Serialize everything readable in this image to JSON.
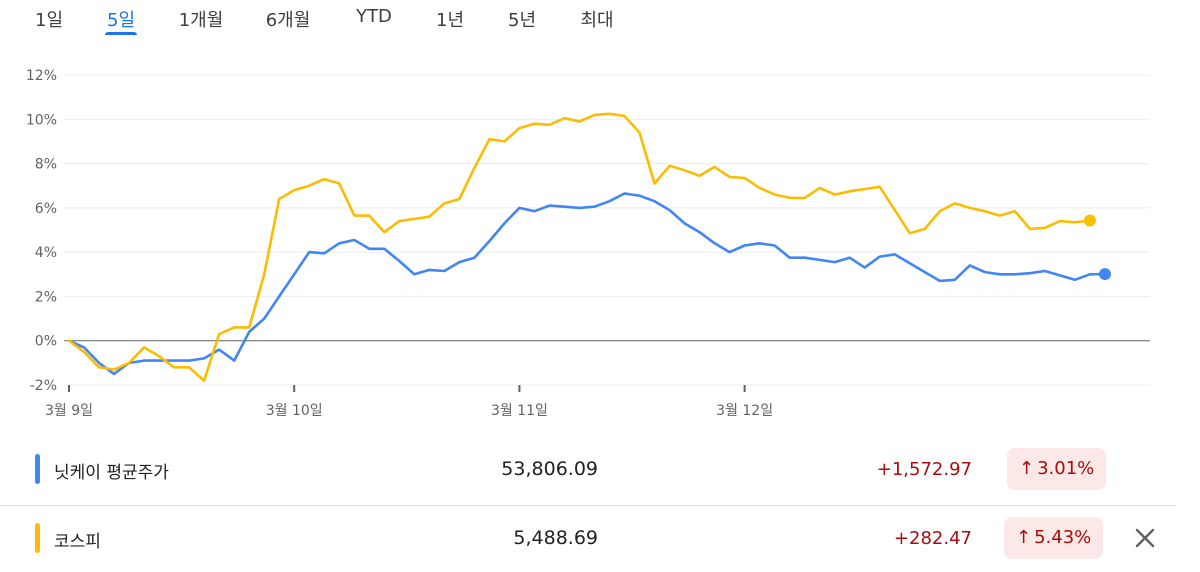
{
  "tabs": [
    {
      "label": "1일",
      "active": false
    },
    {
      "label": "5일",
      "active": true
    },
    {
      "label": "1개월",
      "active": false
    },
    {
      "label": "6개월",
      "active": false
    },
    {
      "label": "YTD",
      "active": false
    },
    {
      "label": "1년",
      "active": false
    },
    {
      "label": "5년",
      "active": false
    },
    {
      "label": "최대",
      "active": false
    }
  ],
  "colors": {
    "nikkei": "#4285f4",
    "kospi": "#fbbc04",
    "accent": "#1a73e8",
    "negative_text": "#a50e0e",
    "badge_bg": "#fce8e6"
  },
  "legend": [
    {
      "name": "닛케이 평균주가",
      "price": "53,806.09",
      "change": "+1,572.97",
      "percent": "3.01%",
      "color": "#4285f4",
      "arrow_icon": "arrow-up-icon"
    },
    {
      "name": "코스피",
      "price": "5,488.69",
      "change": "+282.47",
      "percent": "5.43%",
      "color": "#fbbc04",
      "arrow_icon": "arrow-up-icon"
    }
  ],
  "close_icon": "close-icon",
  "chart_data": {
    "type": "line",
    "title": "",
    "xlabel": "",
    "ylabel": "",
    "ylim": [
      -2,
      12
    ],
    "yticks": [
      "-2%",
      "0%",
      "2%",
      "4%",
      "6%",
      "8%",
      "10%",
      "12%"
    ],
    "yvalues": [
      -2,
      0,
      2,
      4,
      6,
      8,
      10,
      12
    ],
    "xlabels": [
      "3월 9일",
      "3월 10일",
      "3월 11일",
      "3월 12일"
    ],
    "xlabel_positions": [
      0,
      15,
      30,
      45
    ],
    "x_max": 72,
    "grid": true,
    "series": [
      {
        "name": "닛케이 평균주가",
        "color": "#4285f4",
        "values": [
          0.0,
          -0.3,
          -1.0,
          -1.5,
          -1.0,
          -0.9,
          -0.9,
          -0.9,
          -0.9,
          -0.8,
          -0.4,
          -0.9,
          0.4,
          1.0,
          2.0,
          3.0,
          4.0,
          3.95,
          4.4,
          4.55,
          4.15,
          4.15,
          3.6,
          3.0,
          3.2,
          3.15,
          3.55,
          3.75,
          4.5,
          5.3,
          6.0,
          5.85,
          6.1,
          6.05,
          6.0,
          6.05,
          6.3,
          6.65,
          6.55,
          6.3,
          5.9,
          5.3,
          4.9,
          4.4,
          4.0,
          4.3,
          4.4,
          4.3,
          3.75,
          3.75,
          3.65,
          3.55,
          3.75,
          3.3,
          3.8,
          3.9,
          3.5,
          3.1,
          2.7,
          2.75,
          3.4,
          3.1,
          3.0,
          3.0,
          3.05,
          3.15,
          2.95,
          2.75,
          3.0,
          3.01
        ]
      },
      {
        "name": "코스피",
        "color": "#fbbc04",
        "values": [
          0.0,
          -0.5,
          -1.2,
          -1.3,
          -1.0,
          -0.3,
          -0.7,
          -1.2,
          -1.2,
          -1.8,
          0.3,
          0.6,
          0.6,
          3.0,
          6.4,
          6.8,
          7.0,
          7.3,
          7.1,
          5.65,
          5.65,
          4.9,
          5.4,
          5.5,
          5.6,
          6.2,
          6.4,
          7.8,
          9.1,
          9.0,
          9.6,
          9.8,
          9.75,
          10.05,
          9.9,
          10.2,
          10.25,
          10.15,
          9.4,
          7.1,
          7.9,
          7.7,
          7.45,
          7.85,
          7.4,
          7.35,
          6.9,
          6.6,
          6.45,
          6.45,
          6.9,
          6.6,
          6.75,
          6.85,
          6.95,
          5.9,
          4.85,
          5.05,
          5.85,
          6.2,
          6.0,
          5.85,
          5.65,
          5.85,
          5.05,
          5.1,
          5.4,
          5.35,
          5.43
        ]
      }
    ]
  }
}
